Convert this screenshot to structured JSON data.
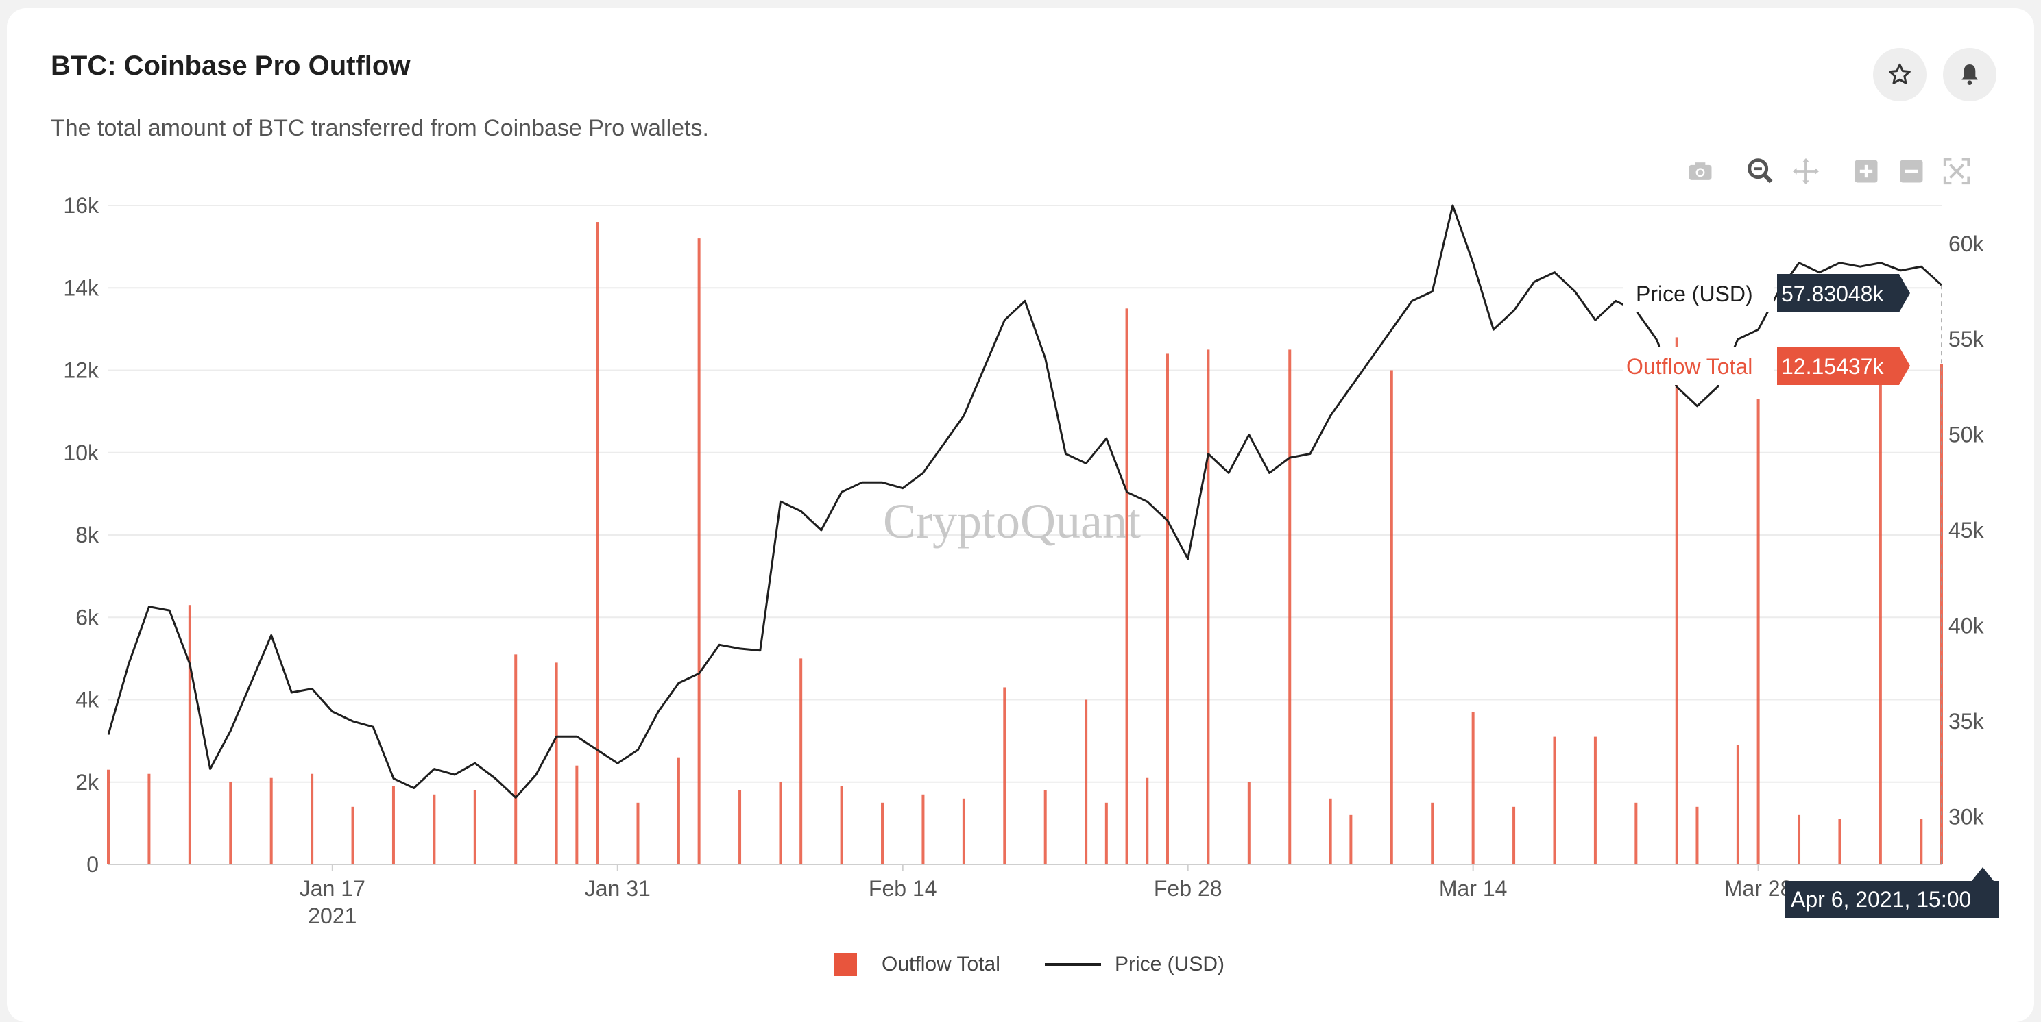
{
  "header": {
    "title": "BTC: Coinbase Pro Outflow",
    "subtitle": "The total amount of BTC transferred from Coinbase Pro wallets."
  },
  "actions": {
    "favorite_icon": "star-icon",
    "alert_icon": "bell-icon"
  },
  "toolbar": [
    "camera-icon",
    "zoom-icon",
    "pan-icon",
    "zoom-in-icon",
    "zoom-out-icon",
    "autoscale-icon"
  ],
  "watermark": "CryptoQuant",
  "tooltips": {
    "price": {
      "label": "Price (USD)",
      "value": "57.83048k"
    },
    "outflow": {
      "label": "Outflow Total",
      "value": "12.15437k"
    },
    "date": "Apr 6, 2021, 15:00"
  },
  "legend": {
    "outflow": "Outflow Total",
    "price": "Price (USD)"
  },
  "colors": {
    "outflow": "#e8553d",
    "price": "#1f1f1f",
    "tooltip_dark": "#243040"
  },
  "chart_data": {
    "type": "bar",
    "x_range": [
      "2021-01-06",
      "2021-04-06"
    ],
    "x_ticks": [
      {
        "date": "2021-01-17",
        "label": "Jan 17",
        "sub": "2021"
      },
      {
        "date": "2021-01-31",
        "label": "Jan 31",
        "sub": ""
      },
      {
        "date": "2021-02-14",
        "label": "Feb 14",
        "sub": ""
      },
      {
        "date": "2021-02-28",
        "label": "Feb 28",
        "sub": ""
      },
      {
        "date": "2021-03-14",
        "label": "Mar 14",
        "sub": ""
      },
      {
        "date": "2021-03-28",
        "label": "Mar 28",
        "sub": ""
      }
    ],
    "y_left": {
      "min": 0,
      "max": 16000,
      "ticks": [
        0,
        2000,
        4000,
        6000,
        8000,
        10000,
        12000,
        14000,
        16000
      ],
      "tick_labels": [
        "0",
        "2k",
        "4k",
        "6k",
        "8k",
        "10k",
        "12k",
        "14k",
        "16k"
      ]
    },
    "y_right": {
      "min": 27500,
      "max": 62000,
      "ticks": [
        30000,
        35000,
        40000,
        45000,
        50000,
        55000,
        60000
      ],
      "tick_labels": [
        "30k",
        "35k",
        "40k",
        "45k",
        "50k",
        "55k",
        "60k"
      ]
    },
    "series": [
      {
        "name": "Outflow Total",
        "type": "bar",
        "x": [
          "2021-01-06",
          "2021-01-08",
          "2021-01-10",
          "2021-01-12",
          "2021-01-14",
          "2021-01-16",
          "2021-01-18",
          "2021-01-20",
          "2021-01-22",
          "2021-01-24",
          "2021-01-26",
          "2021-01-28",
          "2021-01-29",
          "2021-01-30",
          "2021-02-01",
          "2021-02-03",
          "2021-02-04",
          "2021-02-06",
          "2021-02-08",
          "2021-02-09",
          "2021-02-11",
          "2021-02-13",
          "2021-02-15",
          "2021-02-17",
          "2021-02-19",
          "2021-02-21",
          "2021-02-23",
          "2021-02-24",
          "2021-02-25",
          "2021-02-26",
          "2021-02-27",
          "2021-03-01",
          "2021-03-03",
          "2021-03-05",
          "2021-03-07",
          "2021-03-08",
          "2021-03-10",
          "2021-03-12",
          "2021-03-14",
          "2021-03-16",
          "2021-03-18",
          "2021-03-20",
          "2021-03-22",
          "2021-03-24",
          "2021-03-25",
          "2021-03-27",
          "2021-03-28",
          "2021-03-30",
          "2021-04-01",
          "2021-04-03",
          "2021-04-05",
          "2021-04-06"
        ],
        "values": [
          2300,
          2200,
          6300,
          2000,
          2100,
          2200,
          1400,
          1900,
          1700,
          1800,
          5100,
          4900,
          2400,
          15600,
          1500,
          2600,
          15200,
          1800,
          2000,
          5000,
          1900,
          1500,
          1700,
          1600,
          4300,
          1800,
          4000,
          1500,
          13500,
          2100,
          12400,
          12500,
          2000,
          12500,
          1600,
          1200,
          12000,
          1500,
          3700,
          1400,
          3100,
          3100,
          1500,
          12800,
          1400,
          2900,
          11300,
          1200,
          1100,
          11800,
          1100,
          12154
        ]
      },
      {
        "name": "Price (USD)",
        "type": "line",
        "x": [
          "2021-01-06",
          "2021-01-07",
          "2021-01-08",
          "2021-01-09",
          "2021-01-10",
          "2021-01-11",
          "2021-01-12",
          "2021-01-13",
          "2021-01-14",
          "2021-01-15",
          "2021-01-16",
          "2021-01-17",
          "2021-01-18",
          "2021-01-19",
          "2021-01-20",
          "2021-01-21",
          "2021-01-22",
          "2021-01-23",
          "2021-01-24",
          "2021-01-25",
          "2021-01-26",
          "2021-01-27",
          "2021-01-28",
          "2021-01-29",
          "2021-01-30",
          "2021-01-31",
          "2021-02-01",
          "2021-02-02",
          "2021-02-03",
          "2021-02-04",
          "2021-02-05",
          "2021-02-06",
          "2021-02-07",
          "2021-02-08",
          "2021-02-09",
          "2021-02-10",
          "2021-02-11",
          "2021-02-12",
          "2021-02-13",
          "2021-02-14",
          "2021-02-15",
          "2021-02-16",
          "2021-02-17",
          "2021-02-18",
          "2021-02-19",
          "2021-02-20",
          "2021-02-21",
          "2021-02-22",
          "2021-02-23",
          "2021-02-24",
          "2021-02-25",
          "2021-02-26",
          "2021-02-27",
          "2021-02-28",
          "2021-03-01",
          "2021-03-02",
          "2021-03-03",
          "2021-03-04",
          "2021-03-05",
          "2021-03-06",
          "2021-03-07",
          "2021-03-08",
          "2021-03-09",
          "2021-03-10",
          "2021-03-11",
          "2021-03-12",
          "2021-03-13",
          "2021-03-14",
          "2021-03-15",
          "2021-03-16",
          "2021-03-17",
          "2021-03-18",
          "2021-03-19",
          "2021-03-20",
          "2021-03-21",
          "2021-03-22",
          "2021-03-23",
          "2021-03-24",
          "2021-03-25",
          "2021-03-26",
          "2021-03-27",
          "2021-03-28",
          "2021-03-29",
          "2021-03-30",
          "2021-03-31",
          "2021-04-01",
          "2021-04-02",
          "2021-04-03",
          "2021-04-04",
          "2021-04-05",
          "2021-04-06"
        ],
        "values": [
          34300,
          38000,
          41000,
          40800,
          38000,
          32500,
          34500,
          37000,
          39500,
          36500,
          36700,
          35500,
          35000,
          34700,
          32000,
          31500,
          32500,
          32200,
          32800,
          32000,
          31000,
          32200,
          34200,
          34200,
          33500,
          32800,
          33500,
          35500,
          37000,
          37500,
          39000,
          38800,
          38700,
          46500,
          46000,
          45000,
          47000,
          47500,
          47500,
          47200,
          48000,
          49500,
          51000,
          53500,
          56000,
          57000,
          54000,
          49000,
          48500,
          49800,
          47000,
          46500,
          45500,
          43500,
          49000,
          48000,
          50000,
          48000,
          48800,
          49000,
          51000,
          52500,
          54000,
          55500,
          57000,
          57500,
          62000,
          59000,
          55500,
          56500,
          58000,
          58500,
          57500,
          56000,
          57000,
          56500,
          55000,
          52500,
          51500,
          52500,
          55000,
          55500,
          57500,
          59000,
          58500,
          59000,
          58800,
          59000,
          58600,
          58800,
          57830
        ]
      }
    ]
  }
}
